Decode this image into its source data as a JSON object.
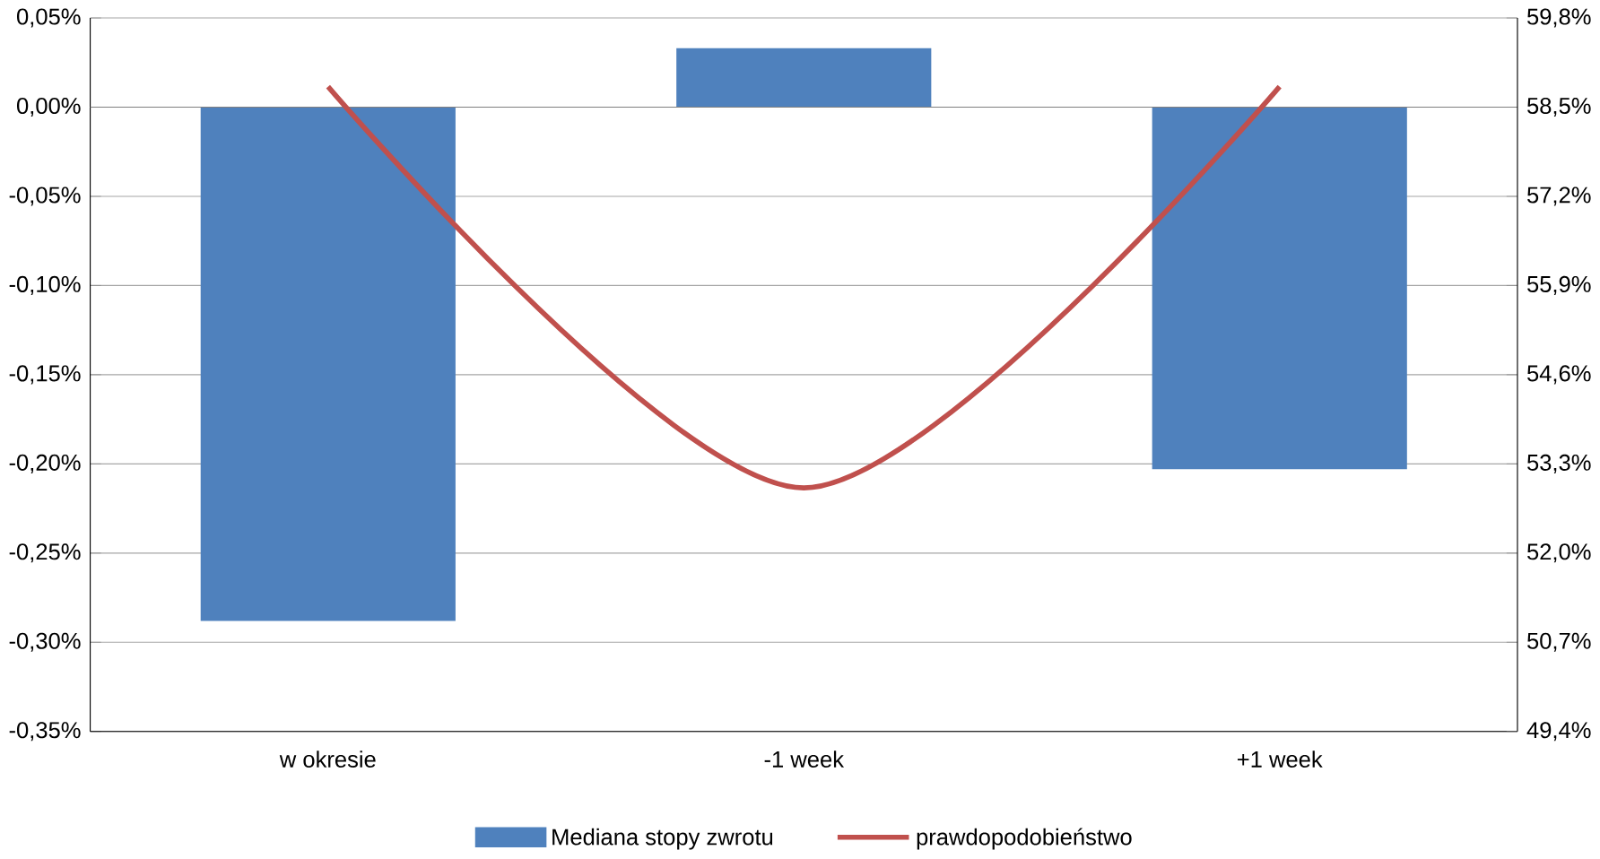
{
  "chart_data": {
    "type": "bar",
    "categories": [
      "w okresie",
      "-1 week",
      "+1 week"
    ],
    "series": [
      {
        "name": "Mediana stopy zwrotu",
        "color": "#4f81bd",
        "values": [
          -0.288,
          0.033,
          -0.203
        ]
      },
      {
        "name": "prawdopodobieństwo",
        "type": "line",
        "axis": "y2",
        "color": "#c0504d",
        "values": [
          58.8,
          52.95,
          58.8
        ]
      }
    ],
    "ylim": [
      -0.35,
      0.05
    ],
    "yticks": [
      {
        "value": -0.35,
        "label": "-0,35%"
      },
      {
        "value": -0.3,
        "label": "-0,30%"
      },
      {
        "value": -0.25,
        "label": "-0,25%"
      },
      {
        "value": -0.2,
        "label": "-0,20%"
      },
      {
        "value": -0.15,
        "label": "-0,15%"
      },
      {
        "value": -0.1,
        "label": "-0,10%"
      },
      {
        "value": -0.05,
        "label": "-0,05%"
      },
      {
        "value": 0,
        "label": "0,00%"
      },
      {
        "value": 0.05,
        "label": "0,05%"
      }
    ],
    "y2lim": [
      49.4,
      59.8
    ],
    "y2ticks": [
      {
        "value": 49.4,
        "label": "49,4%"
      },
      {
        "value": 50.7,
        "label": "50,7%"
      },
      {
        "value": 52.0,
        "label": "52,0%"
      },
      {
        "value": 53.3,
        "label": "53,3%"
      },
      {
        "value": 54.6,
        "label": "54,6%"
      },
      {
        "value": 55.9,
        "label": "55,9%"
      },
      {
        "value": 57.2,
        "label": "57,2%"
      },
      {
        "value": 58.5,
        "label": "58,5%"
      },
      {
        "value": 59.8,
        "label": "59,8%"
      }
    ],
    "grid": "y",
    "legend": "bottom"
  }
}
